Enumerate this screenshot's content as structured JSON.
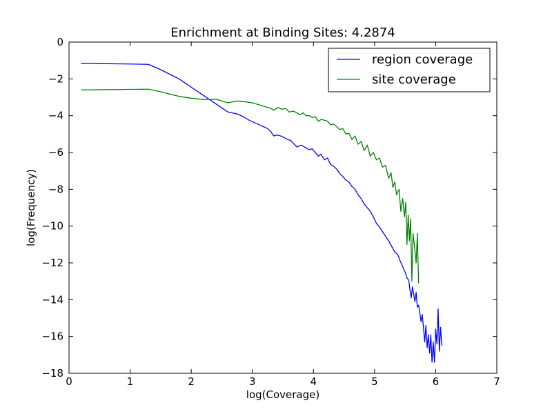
{
  "chart_data": {
    "type": "line",
    "title": "Enrichment at Binding Sites: 4.2874",
    "xlabel": "log(Coverage)",
    "ylabel": "log(Frequency)",
    "xlim": [
      0,
      7
    ],
    "ylim": [
      -18,
      0
    ],
    "x_ticks": [
      0,
      1,
      2,
      3,
      4,
      5,
      6,
      7
    ],
    "x_tick_labels": [
      "0",
      "1",
      "2",
      "3",
      "4",
      "5",
      "6",
      "7"
    ],
    "y_ticks": [
      0,
      -2,
      -4,
      -6,
      -8,
      -10,
      -12,
      -14,
      -16,
      -18
    ],
    "y_tick_labels": [
      "0",
      "−2",
      "−4",
      "−6",
      "−8",
      "−10",
      "−12",
      "−14",
      "−16",
      "−18"
    ],
    "grid": false,
    "legend_position": "top-right",
    "series": [
      {
        "name": "region coverage",
        "color": "#0000ff",
        "x": [
          0.2,
          0.5,
          1.0,
          1.3,
          1.5,
          1.8,
          2.0,
          2.2,
          2.4,
          2.6,
          2.75,
          2.85,
          2.95,
          3.05,
          3.15,
          3.25,
          3.3,
          3.35,
          3.42,
          3.5,
          3.58,
          3.63,
          3.67,
          3.73,
          3.8,
          3.88,
          3.93,
          3.98,
          4.03,
          4.08,
          4.12,
          4.18,
          4.23,
          4.28,
          4.33,
          4.38,
          4.43,
          4.48,
          4.53,
          4.58,
          4.63,
          4.68,
          4.73,
          4.78,
          4.83,
          4.88,
          4.93,
          4.98,
          5.03,
          5.08,
          5.13,
          5.18,
          5.23,
          5.28,
          5.33,
          5.38,
          5.42,
          5.46,
          5.5,
          5.53,
          5.56,
          5.58,
          5.6,
          5.62,
          5.64,
          5.66,
          5.68,
          5.7,
          5.72,
          5.74,
          5.76,
          5.78,
          5.8,
          5.82,
          5.84,
          5.86,
          5.88,
          5.9,
          5.92,
          5.94,
          5.96,
          5.98,
          6.0,
          6.02,
          6.04,
          6.06,
          6.08,
          6.1
        ],
        "y": [
          -1.15,
          -1.17,
          -1.19,
          -1.21,
          -1.5,
          -2.0,
          -2.45,
          -2.9,
          -3.35,
          -3.8,
          -3.9,
          -4.05,
          -4.25,
          -4.4,
          -4.55,
          -4.7,
          -4.85,
          -5.1,
          -5.05,
          -5.15,
          -5.3,
          -5.35,
          -5.5,
          -5.7,
          -5.6,
          -5.75,
          -5.85,
          -5.8,
          -6.0,
          -6.2,
          -6.1,
          -6.4,
          -6.3,
          -6.65,
          -6.75,
          -6.9,
          -7.15,
          -7.3,
          -7.5,
          -7.6,
          -7.85,
          -8.0,
          -8.3,
          -8.5,
          -8.8,
          -9.0,
          -9.2,
          -9.5,
          -9.85,
          -10.05,
          -10.3,
          -10.55,
          -10.8,
          -11.1,
          -11.4,
          -11.55,
          -11.9,
          -12.2,
          -12.5,
          -12.8,
          -12.95,
          -13.5,
          -13.9,
          -13.3,
          -13.7,
          -14.1,
          -13.6,
          -14.4,
          -14.3,
          -14.7,
          -15.2,
          -14.8,
          -15.5,
          -16.3,
          -15.4,
          -16.6,
          -15.9,
          -16.9,
          -15.9,
          -17.4,
          -16.3,
          -17.4,
          -15.6,
          -16.4,
          -14.5,
          -16.8,
          -15.5,
          -16.5
        ]
      },
      {
        "name": "site coverage",
        "color": "#008000",
        "x": [
          0.2,
          0.5,
          1.0,
          1.3,
          1.5,
          1.8,
          2.0,
          2.2,
          2.4,
          2.6,
          2.75,
          2.9,
          3.0,
          3.1,
          3.2,
          3.3,
          3.35,
          3.42,
          3.48,
          3.55,
          3.6,
          3.67,
          3.73,
          3.78,
          3.83,
          3.88,
          3.93,
          3.98,
          4.03,
          4.08,
          4.13,
          4.18,
          4.23,
          4.28,
          4.33,
          4.38,
          4.43,
          4.48,
          4.53,
          4.58,
          4.63,
          4.68,
          4.73,
          4.78,
          4.83,
          4.88,
          4.93,
          4.98,
          5.03,
          5.08,
          5.13,
          5.18,
          5.23,
          5.27,
          5.3,
          5.33,
          5.36,
          5.4,
          5.43,
          5.46,
          5.49,
          5.51,
          5.53,
          5.55,
          5.57,
          5.59,
          5.61,
          5.63,
          5.66,
          5.68,
          5.7,
          5.72
        ],
        "y": [
          -2.6,
          -2.59,
          -2.57,
          -2.56,
          -2.7,
          -2.95,
          -3.05,
          -3.12,
          -3.1,
          -3.3,
          -3.2,
          -3.25,
          -3.3,
          -3.4,
          -3.5,
          -3.6,
          -3.7,
          -3.55,
          -3.65,
          -3.6,
          -3.8,
          -3.75,
          -3.85,
          -3.95,
          -3.85,
          -4.0,
          -4.0,
          -4.1,
          -4.05,
          -4.3,
          -4.2,
          -4.25,
          -4.3,
          -4.5,
          -4.45,
          -4.6,
          -4.75,
          -4.7,
          -5.0,
          -4.95,
          -5.3,
          -5.1,
          -5.55,
          -5.4,
          -5.9,
          -5.6,
          -6.2,
          -6.0,
          -6.4,
          -6.3,
          -6.8,
          -6.7,
          -7.4,
          -7.1,
          -7.9,
          -7.6,
          -8.3,
          -8.0,
          -9.2,
          -8.5,
          -9.5,
          -8.7,
          -11.0,
          -9.4,
          -10.8,
          -9.6,
          -13.0,
          -10.4,
          -11.3,
          -12.0,
          -10.4,
          -13.1
        ]
      }
    ]
  }
}
